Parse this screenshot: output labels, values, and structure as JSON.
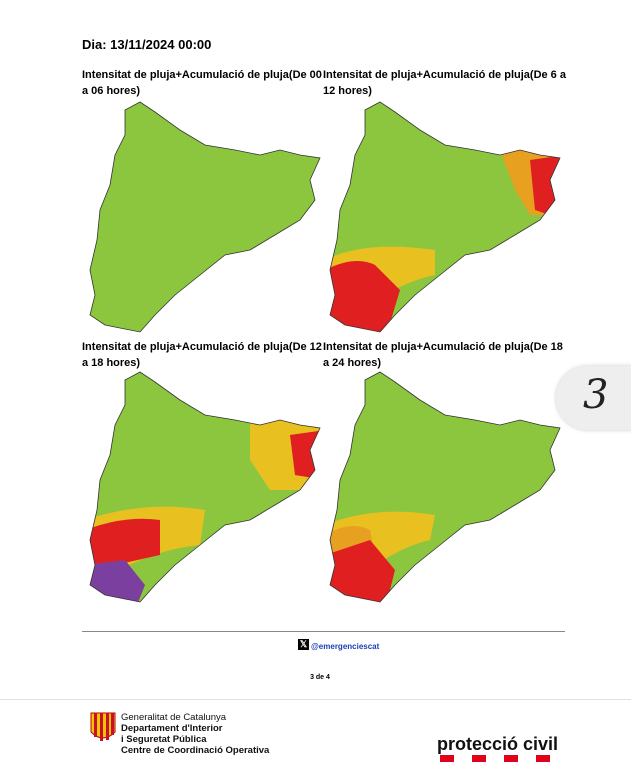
{
  "header": {
    "date": "Dia: 13/11/2024 00:00"
  },
  "maps": [
    {
      "title": "Intensitat de pluja+Acumulació de pluja(De 00 a 06 hores)"
    },
    {
      "title": "Intensitat de pluja+Acumulació de pluja(De 6 a 12 hores)"
    },
    {
      "title": "Intensitat de pluja+Acumulació de pluja(De 12 a 18 hores)"
    },
    {
      "title": "Intensitat de pluja+Acumulació de pluja(De 18 a 24 hores)"
    }
  ],
  "social": {
    "handle": "@emergenciescat"
  },
  "page": {
    "number": "3 de 4"
  },
  "tab": {
    "label": "3"
  },
  "footer": {
    "org": [
      "Generalitat de Catalunya",
      "Departament d'Interior",
      "i Seguretat Pública",
      "Centre de Coordinació Operativa"
    ],
    "brand": "protecció civil"
  }
}
